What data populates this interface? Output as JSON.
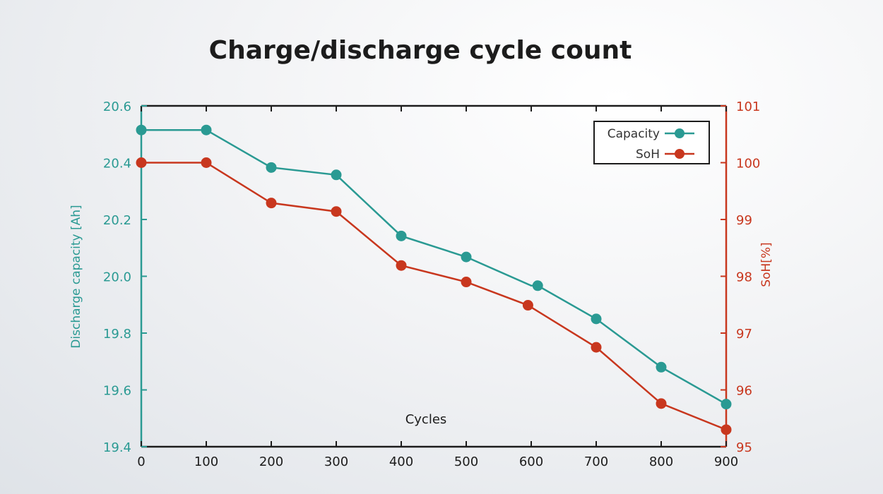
{
  "colors": {
    "capacity": "#2a9a93",
    "soh": "#c8371e",
    "axis": "#1c1c1c"
  },
  "chart_data": {
    "type": "line",
    "title": "Charge/discharge cycle count",
    "xlabel": "Cycles",
    "ylabel_left": "Discharge capacity [Ah]",
    "ylabel_right": "SoH[%]",
    "x": [
      0,
      100,
      200,
      300,
      400,
      500,
      600,
      700,
      800,
      900
    ],
    "xlim": [
      0,
      900
    ],
    "ylim_left": [
      19.4,
      20.6
    ],
    "ylim_right": [
      95,
      101
    ],
    "x_ticks": [
      "0",
      "100",
      "200",
      "300",
      "400",
      "500",
      "600",
      "700",
      "800",
      "900"
    ],
    "y_ticks_left": [
      "19.4",
      "19.6",
      "19.8",
      "20.0",
      "20.2",
      "20.4",
      "20.6"
    ],
    "y_ticks_right": [
      "95",
      "96",
      "97",
      "98",
      "99",
      "100",
      "101"
    ],
    "legend_position": "top-right",
    "grid": false,
    "series": [
      {
        "name": "Capacity",
        "axis": "left",
        "x": [
          0,
          100,
          200,
          300,
          400,
          500,
          600,
          610,
          700,
          800,
          900
        ],
        "values": [
          20.515,
          20.515,
          20.383,
          20.357,
          20.142,
          20.068,
          19.967,
          19.967,
          19.85,
          19.68,
          19.55
        ]
      },
      {
        "name": "SoH",
        "axis": "right",
        "x": [
          0,
          100,
          200,
          300,
          400,
          500,
          595,
          700,
          800,
          900
        ],
        "values": [
          100.0,
          100.0,
          99.29,
          99.14,
          98.19,
          97.9,
          97.49,
          96.75,
          95.76,
          95.3
        ]
      }
    ]
  }
}
